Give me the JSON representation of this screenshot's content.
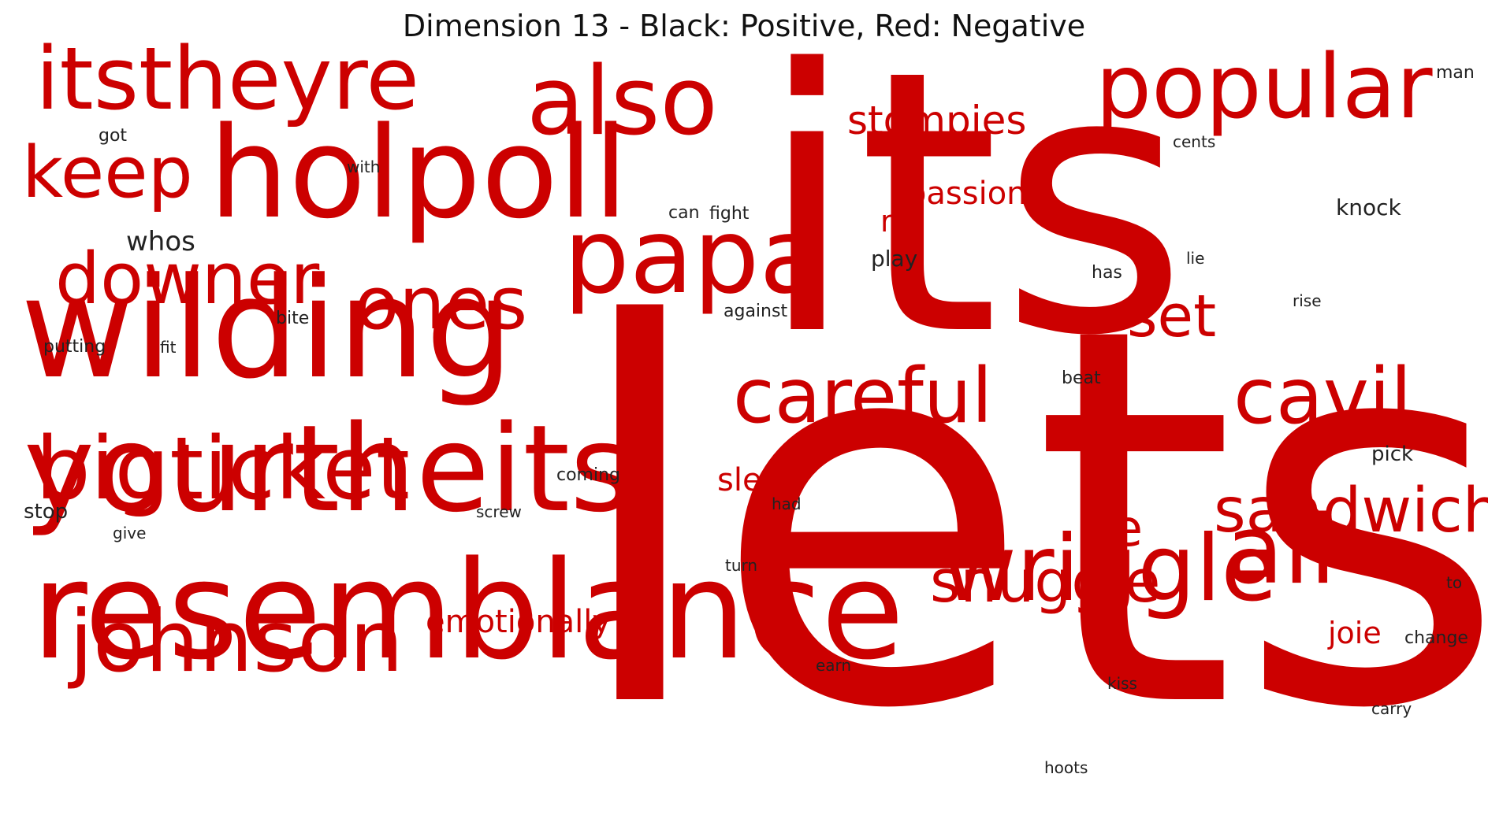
{
  "title": "Dimension 13 - Black: Positive, Red: Negative",
  "colors": {
    "negative": "#cc0000",
    "positive": "#222222"
  },
  "words": [
    {
      "text": "lets",
      "polarity": "negative"
    },
    {
      "text": "its",
      "polarity": "negative"
    },
    {
      "text": "resemblance",
      "polarity": "negative"
    },
    {
      "text": "wilding",
      "polarity": "negative"
    },
    {
      "text": "holpoll",
      "polarity": "negative"
    },
    {
      "text": "yourtheits",
      "polarity": "negative"
    },
    {
      "text": "itstheyre",
      "polarity": "negative"
    },
    {
      "text": "papa",
      "polarity": "negative"
    },
    {
      "text": "also",
      "polarity": "negative"
    },
    {
      "text": "popular",
      "polarity": "negative"
    },
    {
      "text": "wriggle",
      "polarity": "negative"
    },
    {
      "text": "all",
      "polarity": "negative"
    },
    {
      "text": "bigticket",
      "polarity": "negative"
    },
    {
      "text": "johnson",
      "polarity": "negative"
    },
    {
      "text": "downer",
      "polarity": "negative"
    },
    {
      "text": "keep",
      "polarity": "negative"
    },
    {
      "text": "ones",
      "polarity": "negative"
    },
    {
      "text": "careful",
      "polarity": "negative"
    },
    {
      "text": "cavil",
      "polarity": "negative"
    },
    {
      "text": "sandwich",
      "polarity": "negative"
    },
    {
      "text": "snuggle",
      "polarity": "negative"
    },
    {
      "text": "set",
      "polarity": "negative"
    },
    {
      "text": "be",
      "polarity": "negative"
    },
    {
      "text": "stompies",
      "polarity": "negative"
    },
    {
      "text": "passion",
      "polarity": "negative"
    },
    {
      "text": "rift",
      "polarity": "negative"
    },
    {
      "text": "emotionally",
      "polarity": "negative"
    },
    {
      "text": "slew",
      "polarity": "negative"
    },
    {
      "text": "joie",
      "polarity": "negative"
    },
    {
      "text": "whos",
      "polarity": "positive"
    },
    {
      "text": "play",
      "polarity": "positive"
    },
    {
      "text": "knock",
      "polarity": "positive"
    },
    {
      "text": "can",
      "polarity": "positive"
    },
    {
      "text": "fight",
      "polarity": "positive"
    },
    {
      "text": "against",
      "polarity": "positive"
    },
    {
      "text": "putting",
      "polarity": "positive"
    },
    {
      "text": "fit",
      "polarity": "positive"
    },
    {
      "text": "bite",
      "polarity": "positive"
    },
    {
      "text": "got",
      "polarity": "positive"
    },
    {
      "text": "with",
      "polarity": "positive"
    },
    {
      "text": "cents",
      "polarity": "positive"
    },
    {
      "text": "man",
      "polarity": "positive"
    },
    {
      "text": "has",
      "polarity": "positive"
    },
    {
      "text": "lie",
      "polarity": "positive"
    },
    {
      "text": "rise",
      "polarity": "positive"
    },
    {
      "text": "beat",
      "polarity": "positive"
    },
    {
      "text": "pick",
      "polarity": "positive"
    },
    {
      "text": "coming",
      "polarity": "positive"
    },
    {
      "text": "stop",
      "polarity": "positive"
    },
    {
      "text": "screw",
      "polarity": "positive"
    },
    {
      "text": "had",
      "polarity": "positive"
    },
    {
      "text": "give",
      "polarity": "positive"
    },
    {
      "text": "turn",
      "polarity": "positive"
    },
    {
      "text": "to",
      "polarity": "positive"
    },
    {
      "text": "change",
      "polarity": "positive"
    },
    {
      "text": "earn",
      "polarity": "positive"
    },
    {
      "text": "kiss",
      "polarity": "positive"
    },
    {
      "text": "carry",
      "polarity": "positive"
    },
    {
      "text": "hoots",
      "polarity": "positive"
    }
  ]
}
